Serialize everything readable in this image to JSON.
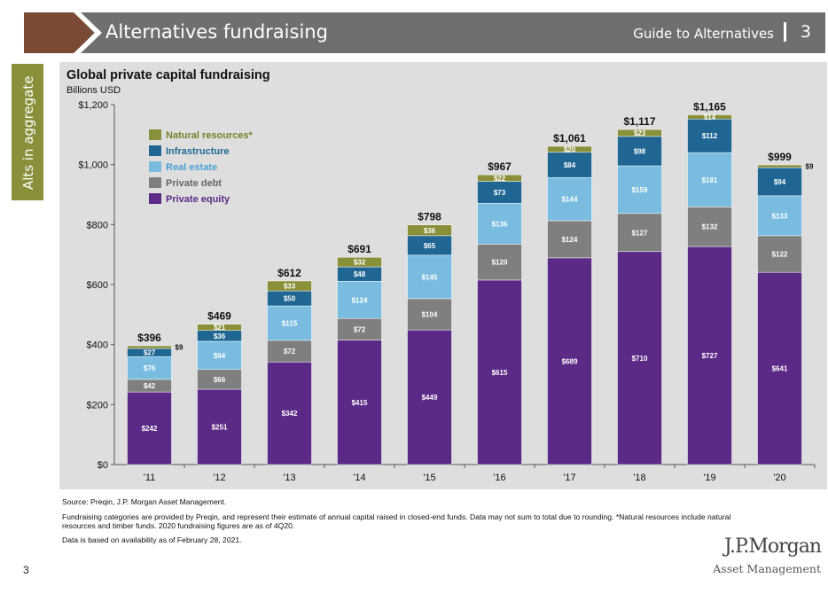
{
  "header": {
    "section_title": "Alternatives fundraising",
    "guide_title": "Guide to Alternatives",
    "page_number": "3"
  },
  "side_tab": {
    "label": "Alts in aggregate"
  },
  "colors": {
    "banner": "#6f6f6f",
    "accent": "#7a4a34",
    "side_tab": "#8a8f3a",
    "panel": "#dedede",
    "private_equity": "#5b2a86",
    "private_debt": "#7f7f7f",
    "real_estate": "#79bce0",
    "infrastructure": "#1f6693",
    "natural_resources": "#8a8f3a"
  },
  "chart_data": {
    "type": "bar",
    "stacked": true,
    "title": "Global private capital fundraising",
    "subtitle": "Billions USD",
    "xlabel": "",
    "ylabel": "",
    "ylim": [
      0,
      1200
    ],
    "yticks": [
      0,
      200,
      400,
      600,
      800,
      1000,
      1200
    ],
    "ytick_labels": [
      "$0",
      "$200",
      "$400",
      "$600",
      "$800",
      "$1,000",
      "$1,200"
    ],
    "categories": [
      "'11",
      "'12",
      "'13",
      "'14",
      "'15",
      "'16",
      "'17",
      "'18",
      "'19",
      "'20"
    ],
    "grid": false,
    "legend_position": "top-left",
    "series": [
      {
        "name": "Private equity",
        "color": "#5b2a86",
        "values": [
          242,
          251,
          342,
          415,
          449,
          615,
          689,
          710,
          727,
          641
        ]
      },
      {
        "name": "Private debt",
        "color": "#7f7f7f",
        "values": [
          42,
          66,
          72,
          72,
          104,
          120,
          124,
          127,
          132,
          122
        ]
      },
      {
        "name": "Real estate",
        "color": "#79bce0",
        "values": [
          76,
          94,
          115,
          124,
          145,
          136,
          144,
          159,
          181,
          133
        ]
      },
      {
        "name": "Infrastructure",
        "color": "#1f6693",
        "values": [
          27,
          36,
          50,
          48,
          65,
          73,
          84,
          98,
          112,
          94
        ]
      },
      {
        "name": "Natural resources*",
        "color": "#8a8f3a",
        "values": [
          9,
          21,
          33,
          32,
          36,
          22,
          20,
          23,
          14,
          9
        ]
      }
    ],
    "totals": [
      "$396",
      "$469",
      "$612",
      "$691",
      "$798",
      "$967",
      "$1,061",
      "$1,117",
      "$1,165",
      "$999"
    ]
  },
  "footnotes": {
    "source": "Source: Preqin, J.P. Morgan Asset Management.",
    "methodology": "Fundraising categories are provided by Preqin, and represent their estimate of annual capital raised in closed-end funds. Data may not sum to total due to rounding. *Natural resources include natural resources and timber funds. 2020 fundraising figures are as of 4Q20.",
    "data_date": "Data is based on availability as of February 28, 2021."
  },
  "footer": {
    "page_number": "3",
    "logo_main": "J.P.Morgan",
    "logo_sub": "Asset Management"
  }
}
